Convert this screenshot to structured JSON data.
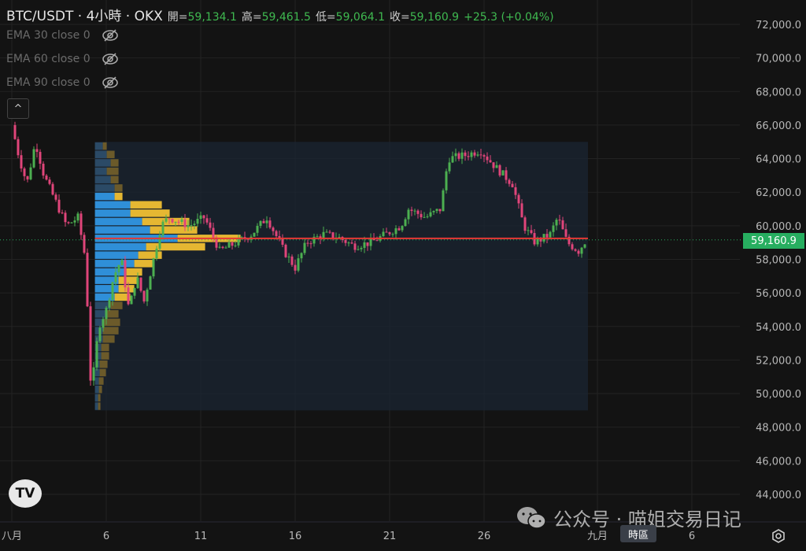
{
  "header": {
    "symbol": "BTC/USDT · 4小時 · OKX",
    "open_label": "開=",
    "open": "59,134.1",
    "high_label": "高=",
    "high": "59,461.5",
    "low_label": "低=",
    "low": "59,064.1",
    "close_label": "收=",
    "close": "59,160.9",
    "change": "+25.3 (+0.04%)"
  },
  "indicators": [
    {
      "label": "EMA 30 close 0",
      "icon": "eye-off-icon"
    },
    {
      "label": "EMA 60 close 0",
      "icon": "eye-off-icon"
    },
    {
      "label": "EMA 90 close 0",
      "icon": "eye-off-icon"
    }
  ],
  "collapse_label": "^",
  "logo_text": "TV",
  "current_price_label": "59,160.9",
  "timezone_button": "時區",
  "watermark": "公众号 · 喵姐交易日记",
  "colors": {
    "up": "#4caf50",
    "down": "#e0457a",
    "poc": "#e53935",
    "profile_up": "#2f8fd8",
    "profile_down": "#e5b732",
    "price_tag": "#27ae60"
  },
  "chart_data": {
    "type": "candlestick",
    "ylim": [
      43000,
      73000
    ],
    "y_ticks": [
      "72,000.0",
      "70,000.0",
      "68,000.0",
      "66,000.0",
      "64,000.0",
      "62,000.0",
      "60,000.0",
      "58,000.0",
      "56,000.0",
      "54,000.0",
      "52,000.0",
      "50,000.0",
      "48,000.0",
      "46,000.0",
      "44,000.0"
    ],
    "x_ticks": [
      {
        "day": 1,
        "label": "八月"
      },
      {
        "day": 6,
        "label": "6"
      },
      {
        "day": 11,
        "label": "11"
      },
      {
        "day": 16,
        "label": "16"
      },
      {
        "day": 21,
        "label": "21"
      },
      {
        "day": 26,
        "label": "26"
      },
      {
        "day": 32,
        "label": "九月"
      },
      {
        "day": 37,
        "label": "6"
      }
    ],
    "price_path": [
      [
        1,
        66000
      ],
      [
        1.4,
        64000
      ],
      [
        1.8,
        62500
      ],
      [
        2.25,
        65000
      ],
      [
        2.7,
        63000
      ],
      [
        3.1,
        62000
      ],
      [
        3.5,
        61000
      ],
      [
        3.9,
        60000
      ],
      [
        4.5,
        60500
      ],
      [
        4.9,
        58000
      ],
      [
        5.2,
        50000
      ],
      [
        5.6,
        54000
      ],
      [
        6,
        55000
      ],
      [
        6.4,
        57000
      ],
      [
        6.8,
        58000
      ],
      [
        7.2,
        55000
      ],
      [
        7.6,
        57000
      ],
      [
        8,
        55500
      ],
      [
        8.5,
        58000
      ],
      [
        8.9,
        60000
      ],
      [
        9.3,
        60500
      ],
      [
        10.4,
        60000
      ],
      [
        11.2,
        60500
      ],
      [
        12,
        58500
      ],
      [
        12.9,
        59000
      ],
      [
        13.7,
        59500
      ],
      [
        14.5,
        60500
      ],
      [
        15.4,
        58500
      ],
      [
        16,
        57500
      ],
      [
        16.6,
        59000
      ],
      [
        17.5,
        59500
      ],
      [
        18.3,
        59300
      ],
      [
        19.1,
        58800
      ],
      [
        20,
        59000
      ],
      [
        20.8,
        59500
      ],
      [
        21.6,
        60000
      ],
      [
        22,
        61000
      ],
      [
        22.9,
        60500
      ],
      [
        23.7,
        61000
      ],
      [
        24.1,
        64000
      ],
      [
        25,
        64200
      ],
      [
        25.8,
        64500
      ],
      [
        26.6,
        63500
      ],
      [
        27.5,
        62500
      ],
      [
        28.1,
        60000
      ],
      [
        28.7,
        59000
      ],
      [
        29.5,
        59500
      ],
      [
        29.9,
        60500
      ],
      [
        30.4,
        59000
      ],
      [
        31,
        58500
      ],
      [
        31.4,
        59160.9
      ]
    ],
    "poc_price": 59250,
    "current_price": 59160.9,
    "volume_profile": {
      "range": [
        49000,
        65000
      ],
      "bin_size": 500,
      "value_area": [
        55500,
        62000
      ],
      "bins_top_down": [
        [
          10,
          5
        ],
        [
          15,
          10
        ],
        [
          20,
          10
        ],
        [
          15,
          15
        ],
        [
          20,
          10
        ],
        [
          25,
          10
        ],
        [
          25,
          10
        ],
        [
          45,
          40
        ],
        [
          45,
          50
        ],
        [
          60,
          60
        ],
        [
          70,
          60
        ],
        [
          105,
          80
        ],
        [
          65,
          75
        ],
        [
          55,
          30
        ],
        [
          50,
          25
        ],
        [
          40,
          20
        ],
        [
          30,
          25
        ],
        [
          30,
          20
        ],
        [
          25,
          20
        ],
        [
          20,
          15
        ],
        [
          15,
          15
        ],
        [
          12,
          20
        ],
        [
          10,
          20
        ],
        [
          10,
          15
        ],
        [
          8,
          10
        ],
        [
          8,
          10
        ],
        [
          6,
          10
        ],
        [
          6,
          8
        ],
        [
          5,
          6
        ],
        [
          5,
          4
        ],
        [
          4,
          3
        ],
        [
          4,
          3
        ]
      ]
    }
  }
}
